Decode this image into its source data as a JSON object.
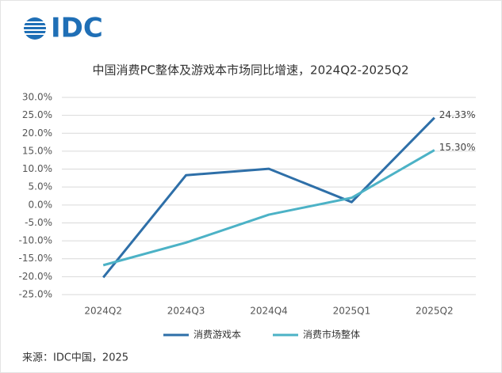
{
  "logo": "IDC",
  "source": "来源：IDC中国，2025",
  "chart_data": {
    "type": "line",
    "title": "中国消费PC整体及游戏本市场同比增速，2024Q2-2025Q2",
    "categories": [
      "2024Q2",
      "2024Q3",
      "2024Q4",
      "2025Q1",
      "2025Q2"
    ],
    "series": [
      {
        "name": "消费游戏本",
        "color": "#2e6fa8",
        "values": [
          -20.2,
          8.3,
          10.1,
          0.8,
          24.33
        ],
        "value_labels": [
          null,
          null,
          null,
          null,
          "24.33%"
        ]
      },
      {
        "name": "消费市场整体",
        "color": "#4cb2c6",
        "values": [
          -16.8,
          -10.5,
          -2.7,
          2.0,
          15.3
        ],
        "value_labels": [
          null,
          null,
          null,
          null,
          "15.30%"
        ]
      }
    ],
    "ylim": [
      -25,
      30
    ],
    "yticks": [
      {
        "value": -25,
        "label": "-25.0%"
      },
      {
        "value": -20,
        "label": "-20.0%"
      },
      {
        "value": -15,
        "label": "-15.0%"
      },
      {
        "value": -10,
        "label": "-10.0%"
      },
      {
        "value": -5,
        "label": "-5.0%"
      },
      {
        "value": 0,
        "label": "0.0%"
      },
      {
        "value": 5,
        "label": "5.0%"
      },
      {
        "value": 10,
        "label": "10.0%"
      },
      {
        "value": 15,
        "label": "15.0%"
      },
      {
        "value": 20,
        "label": "20.0%"
      },
      {
        "value": 25,
        "label": "25.0%"
      },
      {
        "value": 30,
        "label": "30.0%"
      }
    ],
    "grid": true,
    "legend": "bottom"
  }
}
